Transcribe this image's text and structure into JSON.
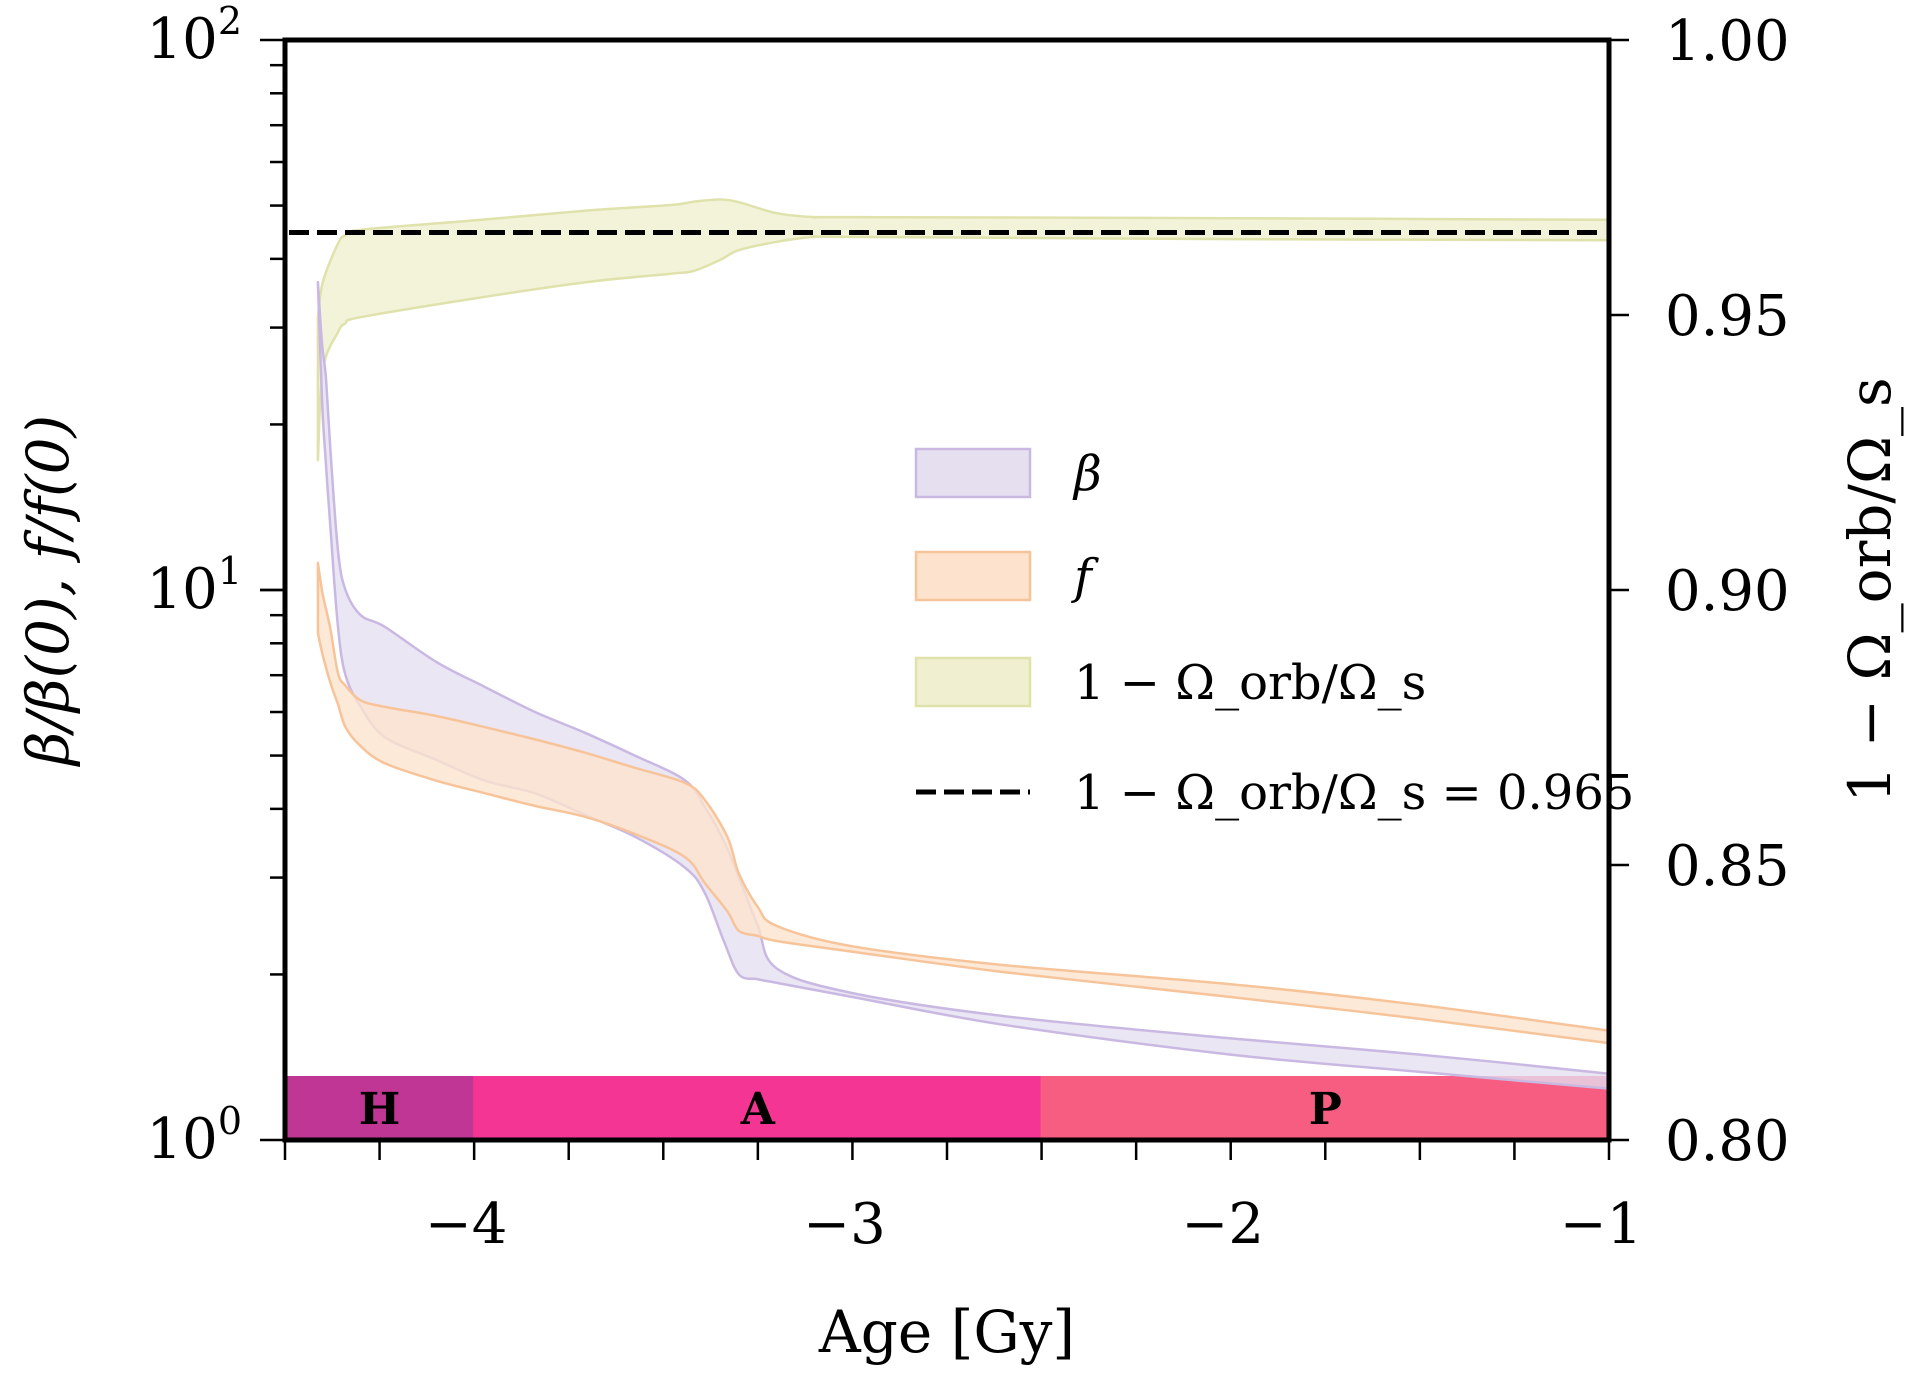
{
  "chart_data": {
    "type": "area",
    "title": "",
    "xlabel": "Age [Gy]",
    "ylabel_left": "β/β(0),  f/f(0)",
    "ylabel_right": "1 − Ω_orb/Ω_s",
    "xlim": [
      -4.5,
      -1
    ],
    "ylim_left": [
      1,
      100
    ],
    "yscale_left": "log",
    "ylim_right": [
      0.8,
      1.0
    ],
    "grid": false,
    "x_ticks": [
      {
        "value": -4,
        "label": "−4"
      },
      {
        "value": -3,
        "label": "−3"
      },
      {
        "value": -2,
        "label": "−2"
      },
      {
        "value": -1,
        "label": "−1"
      }
    ],
    "x_minor_step": 0.25,
    "y_left_ticks": [
      {
        "value": 1,
        "base": "10",
        "exp": "0"
      },
      {
        "value": 10,
        "base": "10",
        "exp": "1"
      },
      {
        "value": 100,
        "base": "10",
        "exp": "2"
      }
    ],
    "y_right_ticks": [
      {
        "value": 0.8,
        "label": "0.80"
      },
      {
        "value": 0.85,
        "label": "0.85"
      },
      {
        "value": 0.9,
        "label": "0.90"
      },
      {
        "value": 0.95,
        "label": "0.95"
      },
      {
        "value": 1.0,
        "label": "1.00"
      }
    ],
    "series": [
      {
        "name": "β",
        "axis": "left",
        "fill": "#e6dff0",
        "edge": "#c9b9e2",
        "x": [
          -4.413,
          -4.402,
          -4.392,
          -4.38,
          -4.36,
          -4.34,
          -4.3,
          -4.236,
          -4.1,
          -3.971,
          -3.839,
          -3.707,
          -3.575,
          -3.443,
          -3.39,
          -3.34,
          -3.3,
          -3.25,
          -3.2,
          -3.0,
          -2.6,
          -2.0,
          -1.5,
          -1.0
        ],
        "upper": [
          36.3,
          28.0,
          24.4,
          18.0,
          11.8,
          10.0,
          9.0,
          8.57,
          7.4,
          6.66,
          6.0,
          5.5,
          5.0,
          4.51,
          4.03,
          3.5,
          3.0,
          2.45,
          2.05,
          1.85,
          1.68,
          1.53,
          1.43,
          1.32
        ],
        "lower": [
          36.3,
          22.0,
          17.0,
          13.0,
          8.57,
          7.0,
          6.13,
          5.4,
          4.91,
          4.5,
          4.27,
          3.9,
          3.56,
          3.13,
          2.81,
          2.3,
          2.0,
          1.96,
          1.93,
          1.82,
          1.62,
          1.43,
          1.33,
          1.24
        ]
      },
      {
        "name": "f",
        "axis": "left",
        "fill": "#fde3cd",
        "edge": "#f7c49a",
        "x": [
          -4.413,
          -4.4,
          -4.38,
          -4.36,
          -4.34,
          -4.3,
          -4.236,
          -4.1,
          -3.971,
          -3.839,
          -3.707,
          -3.575,
          -3.443,
          -3.39,
          -3.33,
          -3.3,
          -3.25,
          -3.2,
          -3.0,
          -2.6,
          -2.0,
          -1.5,
          -1.0
        ],
        "upper": [
          11.2,
          9.8,
          8.5,
          7.06,
          6.7,
          6.3,
          6.13,
          5.9,
          5.63,
          5.35,
          5.06,
          4.75,
          4.46,
          4.15,
          3.55,
          3.05,
          2.65,
          2.45,
          2.25,
          2.08,
          1.92,
          1.76,
          1.58
        ],
        "lower": [
          8.35,
          7.6,
          6.78,
          6.2,
          5.63,
          5.2,
          4.84,
          4.5,
          4.27,
          4.05,
          3.87,
          3.6,
          3.27,
          2.93,
          2.6,
          2.4,
          2.35,
          2.3,
          2.2,
          2.02,
          1.82,
          1.66,
          1.5
        ]
      },
      {
        "name": "1 − Ω_orb/Ω_s",
        "axis": "right",
        "fill": "#f0f0d0",
        "edge": "#e0e2ac",
        "x": [
          -4.413,
          -4.4,
          -4.36,
          -4.34,
          -4.3,
          -4.0,
          -3.7,
          -3.48,
          -3.42,
          -3.35,
          -3.3,
          -3.2,
          -3.1,
          -3.0,
          -2.0,
          -1.0
        ],
        "upper": [
          0.9496,
          0.956,
          0.963,
          0.9645,
          0.9655,
          0.9672,
          0.969,
          0.97,
          0.9706,
          0.971,
          0.9705,
          0.9685,
          0.9678,
          0.9678,
          0.9676,
          0.9673
        ],
        "lower": [
          0.9236,
          0.94,
          0.9469,
          0.9485,
          0.9496,
          0.953,
          0.956,
          0.9575,
          0.958,
          0.96,
          0.9618,
          0.9633,
          0.9642,
          0.9642,
          0.9638,
          0.9636
        ]
      }
    ],
    "reference_line": {
      "name": "1 − Ω_orb/Ω_s = 0.965",
      "axis": "right",
      "value": 0.965,
      "style": "dashed",
      "color": "#000000"
    },
    "phases": [
      {
        "label": "H",
        "start": -4.5,
        "end": -4.0,
        "color": "#c03694"
      },
      {
        "label": "A",
        "start": -4.0,
        "end": -2.5,
        "color": "#f43594"
      },
      {
        "label": "P",
        "start": -2.5,
        "end": -1.0,
        "color": "#f75d80"
      }
    ],
    "legend": {
      "placement": "center-right",
      "entries": [
        {
          "label": "β",
          "kind": "patch",
          "series": 0
        },
        {
          "label": "f",
          "kind": "patch",
          "series": 1
        },
        {
          "label": "1 − Ω_orb/Ω_s",
          "kind": "patch",
          "series": 2
        },
        {
          "label": "1 − Ω_orb/Ω_s = 0.965",
          "kind": "dashed-line"
        }
      ]
    }
  }
}
